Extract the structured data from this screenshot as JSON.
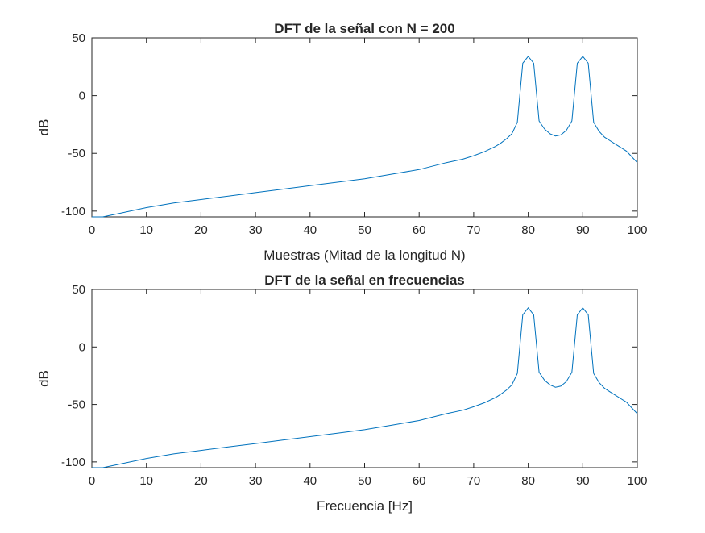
{
  "chart_data": [
    {
      "type": "line",
      "title": "DFT de la señal con N = 200",
      "xlabel": "Muestras (Mitad de la longitud N)",
      "ylabel": "dB",
      "xlim": [
        0,
        100
      ],
      "ylim": [
        -105,
        50
      ],
      "xticks": [
        0,
        10,
        20,
        30,
        40,
        50,
        60,
        70,
        80,
        90,
        100
      ],
      "yticks": [
        50,
        0,
        -50,
        -100
      ],
      "grid": false,
      "color": "#0072BD",
      "series": [
        {
          "x": [
            0,
            2,
            5,
            10,
            15,
            20,
            25,
            30,
            35,
            40,
            45,
            50,
            55,
            60,
            65,
            68,
            70,
            72,
            74,
            75,
            76,
            77,
            78,
            79,
            80,
            81,
            82,
            83,
            84,
            85,
            86,
            87,
            88,
            89,
            90,
            91,
            92,
            93,
            94,
            95,
            96,
            97,
            98,
            99,
            100
          ],
          "y": [
            -105,
            -105,
            -102,
            -97,
            -93,
            -90,
            -87,
            -84,
            -81,
            -78,
            -75,
            -72,
            -68,
            -64,
            -58,
            -55,
            -52,
            -48.5,
            -44,
            -41,
            -37.5,
            -33,
            -23,
            28,
            34,
            28,
            -22,
            -29,
            -33,
            -35,
            -34,
            -30,
            -22,
            28,
            34,
            28,
            -23,
            -31,
            -36,
            -39,
            -42,
            -45,
            -48,
            -53,
            -58
          ]
        }
      ]
    },
    {
      "type": "line",
      "title": "DFT de la señal en frecuencias",
      "xlabel": "Frecuencia [Hz]",
      "ylabel": "dB",
      "xlim": [
        0,
        100
      ],
      "ylim": [
        -105,
        50
      ],
      "xticks": [
        0,
        10,
        20,
        30,
        40,
        50,
        60,
        70,
        80,
        90,
        100
      ],
      "yticks": [
        50,
        0,
        -50,
        -100
      ],
      "grid": false,
      "color": "#0072BD",
      "series": [
        {
          "x": [
            0,
            2,
            5,
            10,
            15,
            20,
            25,
            30,
            35,
            40,
            45,
            50,
            55,
            60,
            65,
            68,
            70,
            72,
            74,
            75,
            76,
            77,
            78,
            79,
            80,
            81,
            82,
            83,
            84,
            85,
            86,
            87,
            88,
            89,
            90,
            91,
            92,
            93,
            94,
            95,
            96,
            97,
            98,
            99,
            100
          ],
          "y": [
            -105,
            -105,
            -102,
            -97,
            -93,
            -90,
            -87,
            -84,
            -81,
            -78,
            -75,
            -72,
            -68,
            -64,
            -58,
            -55,
            -52,
            -48.5,
            -44,
            -41,
            -37.5,
            -33,
            -23,
            28,
            34,
            28,
            -22,
            -29,
            -33,
            -35,
            -34,
            -30,
            -22,
            28,
            34,
            28,
            -23,
            -31,
            -36,
            -39,
            -42,
            -45,
            -48,
            -53,
            -58
          ]
        }
      ]
    }
  ]
}
